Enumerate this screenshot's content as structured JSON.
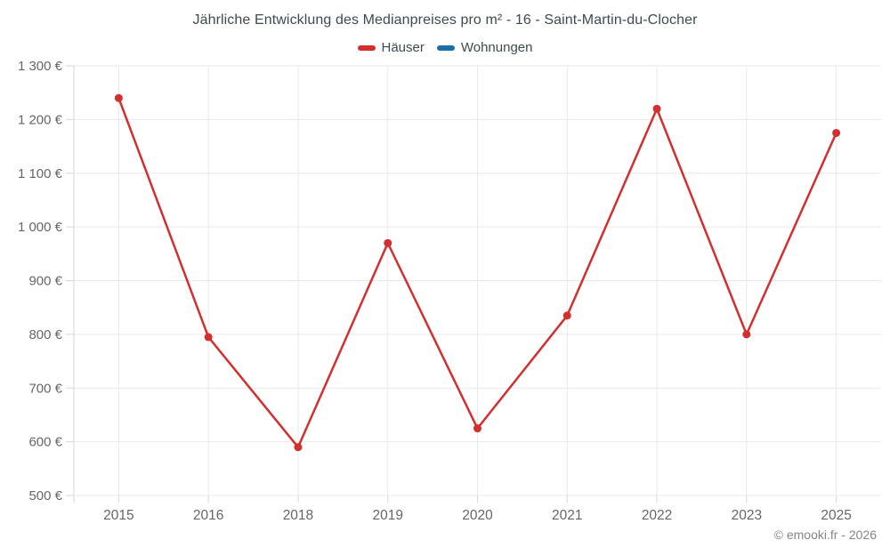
{
  "title": "Jährliche Entwicklung des Medianpreises pro m² - 16 - Saint-Martin-du-Clocher",
  "legend": {
    "items": [
      {
        "label": "Häuser",
        "color": "#d32f2f"
      },
      {
        "label": "Wohnungen",
        "color": "#1c6ea4"
      }
    ]
  },
  "copyright": "© emooki.fr - 2026",
  "colors": {
    "grid": "#e9e9e9",
    "tick": "#d7d7d7",
    "axis_label": "#666666",
    "title_text": "#3c4a52",
    "hauser_red": "#d32f2f",
    "wohnungen_blue": "#1c6ea4"
  },
  "chart_data": {
    "type": "line",
    "title": "Jährliche Entwicklung des Medianpreises pro m² - 16 - Saint-Martin-du-Clocher",
    "categories": [
      "2015",
      "2016",
      "2018",
      "2019",
      "2020",
      "2021",
      "2022",
      "2023",
      "2025"
    ],
    "series": [
      {
        "name": "Häuser",
        "color": "#d32f2f",
        "values": [
          1240,
          795,
          590,
          970,
          625,
          835,
          1220,
          800,
          1175
        ]
      },
      {
        "name": "Wohnungen",
        "color": "#1c6ea4",
        "values": []
      }
    ],
    "xlabel": "",
    "ylabel": "",
    "ytick_suffix": " €",
    "ylim": [
      500,
      1300
    ],
    "ytick_step": 100,
    "ytick_labels": [
      "500 €",
      "600 €",
      "700 €",
      "800 €",
      "900 €",
      "1 000 €",
      "1 100 €",
      "1 200 €",
      "1 300 €"
    ],
    "grid": true,
    "legend_position": "top"
  }
}
